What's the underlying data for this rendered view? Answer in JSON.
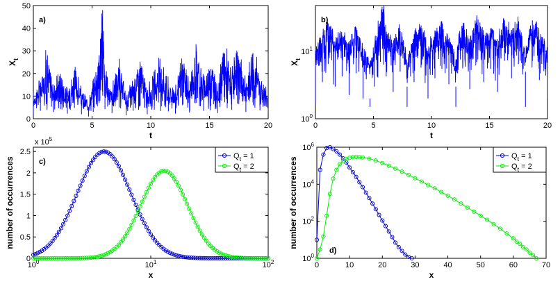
{
  "chart_data": [
    {
      "panel": "a)",
      "type": "line",
      "xscale": "linear",
      "yscale": "linear",
      "xlabel": "t",
      "ylabel": "X_t",
      "xlim": [
        0,
        20
      ],
      "ylim": [
        0,
        50
      ],
      "xticks": [
        0,
        5,
        10,
        15,
        20
      ],
      "yticks": [
        0,
        10,
        20,
        30,
        40,
        50
      ],
      "series": [
        {
          "name": "X_t",
          "color": "#0000ff",
          "x": [
            0,
            0.6,
            1.1,
            1.7,
            2.3,
            2.9,
            3.5,
            4.1,
            4.7,
            5.1,
            5.6,
            5.9,
            6.1,
            6.7,
            7.3,
            7.9,
            8.5,
            9.1,
            9.7,
            10.3,
            10.9,
            11.5,
            12.1,
            12.7,
            13.3,
            13.9,
            14.5,
            15.1,
            15.7,
            16.3,
            16.9,
            17.5,
            18.1,
            18.7,
            19.3,
            20
          ],
          "y": [
            7,
            14,
            26,
            12,
            17,
            9,
            19,
            8,
            4,
            12,
            28,
            48,
            17,
            10,
            20,
            6,
            14,
            23,
            8,
            16,
            22,
            13,
            9,
            24,
            11,
            28,
            14,
            22,
            10,
            29,
            16,
            26,
            12,
            29,
            15,
            8
          ]
        }
      ]
    },
    {
      "panel": "b)",
      "type": "line",
      "xscale": "linear",
      "yscale": "log",
      "xlabel": "t",
      "ylabel": "X_t",
      "xlim": [
        0,
        20
      ],
      "ylim": [
        1,
        48
      ],
      "xticks": [
        0,
        5,
        10,
        15,
        20
      ],
      "yticks": [
        1,
        10
      ],
      "yticklabels": [
        {
          "base": "10",
          "exp": "0"
        },
        {
          "base": "10",
          "exp": "1"
        }
      ],
      "series": [
        {
          "name": "X_t",
          "color": "#0000ff",
          "x": [
            0,
            0.6,
            1.1,
            1.7,
            2.3,
            2.9,
            3.5,
            4.1,
            4.7,
            5.1,
            5.6,
            5.9,
            6.1,
            6.7,
            7.3,
            7.9,
            8.5,
            9.1,
            9.7,
            10.3,
            10.9,
            11.5,
            12.1,
            12.7,
            13.3,
            13.9,
            14.5,
            15.1,
            15.7,
            16.3,
            16.9,
            17.5,
            18.1,
            18.7,
            19.3,
            20
          ],
          "y": [
            7,
            14,
            26,
            12,
            17,
            9,
            19,
            8,
            2,
            12,
            28,
            48,
            17,
            10,
            20,
            3,
            14,
            23,
            8,
            16,
            22,
            13,
            3,
            24,
            11,
            28,
            14,
            22,
            10,
            29,
            16,
            26,
            5,
            29,
            15,
            8
          ]
        }
      ]
    },
    {
      "panel": "c)",
      "type": "line",
      "xscale": "log",
      "yscale": "linear",
      "xlabel": "x",
      "ylabel": "number of occurrences",
      "xlim": [
        1,
        100
      ],
      "ylim": [
        0,
        260000
      ],
      "xticks": [
        1,
        10,
        100
      ],
      "xticklabels": [
        {
          "base": "10",
          "exp": "0"
        },
        {
          "base": "10",
          "exp": "1"
        },
        {
          "base": "10",
          "exp": "2"
        }
      ],
      "yticks": [
        0,
        50000,
        100000,
        150000,
        200000,
        250000
      ],
      "yticklabels": [
        "0",
        "0.5",
        "1",
        "1.5",
        "2",
        "2.5"
      ],
      "multiplier": {
        "base": "x 10",
        "exp": "5"
      },
      "legend": [
        {
          "base": "Q",
          "sub": "t",
          "rest": " = 1"
        },
        {
          "base": "Q",
          "sub": "t",
          "rest": " = 2"
        }
      ],
      "series": [
        {
          "name": "Qt = 1",
          "color": "#0000cc",
          "peak_x": 4,
          "peak_y": 250000,
          "width": 0.23
        },
        {
          "name": "Qt = 2",
          "color": "#00ee00",
          "peak_x": 13,
          "peak_y": 205000,
          "width": 0.2
        }
      ]
    },
    {
      "panel": "d)",
      "type": "line",
      "xscale": "linear",
      "yscale": "log",
      "xlabel": "x",
      "ylabel": "number of occurrences",
      "xlim": [
        0,
        70
      ],
      "ylim": [
        1,
        1000000
      ],
      "xticks": [
        0,
        10,
        20,
        30,
        40,
        50,
        60,
        70
      ],
      "yticks": [
        1,
        100,
        10000,
        1000000
      ],
      "yticklabels": [
        {
          "base": "10",
          "exp": "0"
        },
        {
          "base": "10",
          "exp": "2"
        },
        {
          "base": "10",
          "exp": "4"
        },
        {
          "base": "10",
          "exp": "6"
        }
      ],
      "legend": [
        {
          "base": "Q",
          "sub": "t",
          "rest": " = 1"
        },
        {
          "base": "Q",
          "sub": "t",
          "rest": " = 2"
        }
      ],
      "series": [
        {
          "name": "Qt = 1",
          "color": "#0000cc",
          "x": [
            0,
            1,
            2,
            3,
            4,
            5,
            6,
            7,
            8,
            9,
            10,
            11,
            12,
            13,
            14,
            15,
            16,
            17,
            18,
            19,
            20,
            21,
            22,
            23,
            24,
            25,
            26,
            27,
            28,
            29
          ],
          "y": [
            10,
            60000,
            400000,
            900000,
            1000000,
            800000,
            600000,
            400000,
            250000,
            150000,
            80000,
            45000,
            25000,
            13000,
            7000,
            3500,
            1800,
            900,
            450,
            220,
            110,
            55,
            28,
            14,
            7,
            4,
            2.5,
            1.6,
            1.2,
            1
          ]
        },
        {
          "name": "Qt = 2",
          "color": "#00ee00",
          "x": [
            0,
            1,
            2,
            3,
            4,
            5,
            6,
            7,
            8,
            9,
            10,
            11,
            12,
            13,
            14,
            16,
            18,
            20,
            22,
            24,
            26,
            28,
            30,
            32,
            34,
            36,
            38,
            40,
            42,
            44,
            46,
            48,
            50,
            52,
            54,
            56,
            58,
            60,
            61,
            62,
            63,
            64,
            65,
            66,
            67
          ],
          "y": [
            1,
            3,
            15,
            200,
            3000,
            20000,
            60000,
            120000,
            180000,
            230000,
            270000,
            290000,
            300000,
            290000,
            280000,
            240000,
            190000,
            140000,
            100000,
            70000,
            48000,
            32000,
            21000,
            14000,
            9000,
            6000,
            3800,
            2400,
            1500,
            900,
            550,
            330,
            200,
            120,
            70,
            40,
            22,
            12,
            8,
            6,
            4,
            3,
            2,
            1.5,
            1
          ]
        }
      ]
    }
  ]
}
